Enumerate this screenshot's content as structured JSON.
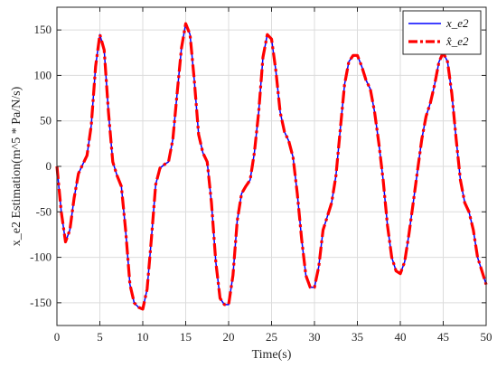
{
  "chart_data": {
    "type": "line",
    "xlabel": "Time(s)",
    "ylabel": "x_e2 Estimation(m^5 * Pa/N/s)",
    "xlim": [
      0,
      50
    ],
    "ylim": [
      -175,
      175
    ],
    "x_ticks": [
      "0",
      "5",
      "10",
      "15",
      "20",
      "25",
      "30",
      "35",
      "40",
      "45",
      "50"
    ],
    "y_ticks": [
      "150",
      "100",
      "50",
      "0",
      "-50",
      "-100",
      "-150"
    ],
    "grid": true,
    "legend_position": "top-right",
    "series": [
      {
        "name": "x_e2",
        "color": "#0000ff",
        "style": "solid",
        "x": [
          0,
          0.5,
          1,
          1.5,
          2,
          2.5,
          3,
          3.5,
          4,
          4.5,
          5,
          5.5,
          6,
          6.5,
          7,
          7.5,
          8,
          8.5,
          9,
          9.5,
          10,
          10.5,
          11,
          11.5,
          12,
          12.5,
          13,
          13.5,
          14,
          14.5,
          15,
          15.5,
          16,
          16.5,
          17,
          17.5,
          18,
          18.5,
          19,
          19.5,
          20,
          20.5,
          21,
          21.5,
          22,
          22.5,
          23,
          23.5,
          24,
          24.5,
          25,
          25.5,
          26,
          26.5,
          27,
          27.5,
          28,
          28.5,
          29,
          29.5,
          30,
          30.5,
          31,
          31.5,
          32,
          32.5,
          33,
          33.5,
          34,
          34.5,
          35,
          35.5,
          36,
          36.5,
          37,
          37.5,
          38,
          38.5,
          39,
          39.5,
          40,
          40.5,
          41,
          41.5,
          42,
          42.5,
          43,
          43.5,
          44,
          44.5,
          45,
          45.5,
          46,
          46.5,
          47,
          47.5,
          48,
          48.5,
          49,
          49.5,
          50
        ],
        "y": [
          0,
          -50,
          -83,
          -70,
          -35,
          -8,
          2,
          12,
          45,
          110,
          145,
          128,
          60,
          5,
          -10,
          -22,
          -70,
          -130,
          -150,
          -155,
          -157,
          -135,
          -80,
          -20,
          -2,
          2,
          5,
          30,
          80,
          130,
          157,
          145,
          95,
          35,
          15,
          5,
          -40,
          -105,
          -145,
          -152,
          -152,
          -120,
          -60,
          -30,
          -22,
          -15,
          15,
          60,
          120,
          145,
          140,
          105,
          60,
          38,
          28,
          10,
          -30,
          -80,
          -120,
          -133,
          -133,
          -110,
          -70,
          -55,
          -40,
          -10,
          40,
          90,
          115,
          122,
          122,
          110,
          95,
          85,
          60,
          25,
          -15,
          -65,
          -100,
          -115,
          -118,
          -105,
          -75,
          -40,
          -5,
          30,
          55,
          70,
          90,
          115,
          125,
          115,
          80,
          30,
          -15,
          -40,
          -50,
          -70,
          -100,
          -115,
          -130
        ]
      },
      {
        "name": "x̂_e2",
        "color": "#ff0000",
        "style": "dashdot",
        "x": [
          0,
          0.5,
          1,
          1.5,
          2,
          2.5,
          3,
          3.5,
          4,
          4.5,
          5,
          5.5,
          6,
          6.5,
          7,
          7.5,
          8,
          8.5,
          9,
          9.5,
          10,
          10.5,
          11,
          11.5,
          12,
          12.5,
          13,
          13.5,
          14,
          14.5,
          15,
          15.5,
          16,
          16.5,
          17,
          17.5,
          18,
          18.5,
          19,
          19.5,
          20,
          20.5,
          21,
          21.5,
          22,
          22.5,
          23,
          23.5,
          24,
          24.5,
          25,
          25.5,
          26,
          26.5,
          27,
          27.5,
          28,
          28.5,
          29,
          29.5,
          30,
          30.5,
          31,
          31.5,
          32,
          32.5,
          33,
          33.5,
          34,
          34.5,
          35,
          35.5,
          36,
          36.5,
          37,
          37.5,
          38,
          38.5,
          39,
          39.5,
          40,
          40.5,
          41,
          41.5,
          42,
          42.5,
          43,
          43.5,
          44,
          44.5,
          45,
          45.5,
          46,
          46.5,
          47,
          47.5,
          48,
          48.5,
          49,
          49.5,
          50
        ],
        "y": [
          0,
          -50,
          -83,
          -70,
          -35,
          -8,
          2,
          12,
          45,
          110,
          145,
          128,
          60,
          5,
          -10,
          -22,
          -70,
          -130,
          -150,
          -155,
          -157,
          -135,
          -80,
          -20,
          -2,
          2,
          5,
          30,
          80,
          130,
          157,
          145,
          95,
          35,
          15,
          5,
          -40,
          -105,
          -145,
          -152,
          -152,
          -120,
          -60,
          -30,
          -22,
          -15,
          15,
          60,
          120,
          145,
          140,
          105,
          60,
          38,
          28,
          10,
          -30,
          -80,
          -120,
          -133,
          -133,
          -110,
          -70,
          -55,
          -40,
          -10,
          40,
          90,
          115,
          122,
          122,
          110,
          95,
          85,
          60,
          25,
          -15,
          -65,
          -100,
          -115,
          -118,
          -105,
          -75,
          -40,
          -5,
          30,
          55,
          70,
          90,
          115,
          125,
          115,
          80,
          30,
          -15,
          -40,
          -50,
          -70,
          -100,
          -115,
          -130
        ]
      }
    ]
  }
}
